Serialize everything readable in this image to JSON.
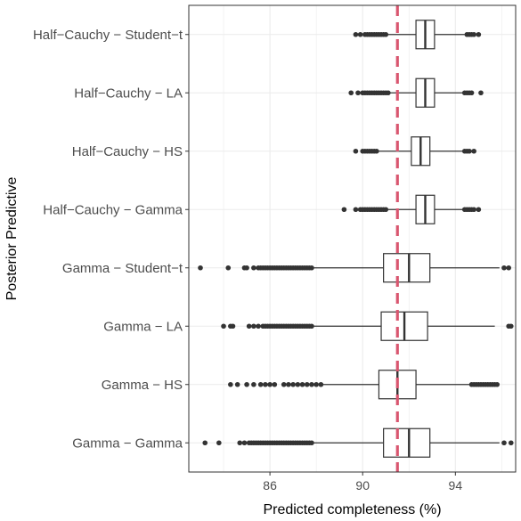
{
  "chart_data": {
    "type": "boxplot",
    "orientation": "horizontal",
    "xlabel": "Predicted completeness (%)",
    "ylabel": "Posterior Predictive",
    "xlim": [
      82.5,
      96.6
    ],
    "x_ticks": [
      86,
      90,
      94
    ],
    "x_minor_ticks": [
      84,
      88,
      92,
      96
    ],
    "grid": "on",
    "reference_line": {
      "x": 91.5,
      "style": "dashed",
      "color": "#d9566f"
    },
    "colors": {
      "box_fill": "#ffffff",
      "box_stroke": "#333333",
      "outlier": "#333333",
      "grid": "#ebebeb",
      "panel_border": "#333333",
      "reference": "#d9566f"
    },
    "categories": [
      "Half−Cauchy − Student−t",
      "Half−Cauchy − LA",
      "Half−Cauchy − HS",
      "Half−Cauchy − Gamma",
      "Gamma − Student−t",
      "Gamma − LA",
      "Gamma − HS",
      "Gamma − Gamma"
    ],
    "boxes": [
      {
        "category": "Half−Cauchy − Student−t",
        "whisker_low": 91.1,
        "q1": 92.3,
        "median": 92.7,
        "q3": 93.1,
        "whisker_high": 94.4,
        "outliers": [
          89.7,
          89.9,
          90.1,
          90.2,
          90.3,
          90.4,
          90.5,
          90.6,
          90.7,
          90.8,
          90.9,
          91.0,
          94.5,
          94.6,
          94.7,
          94.8,
          95.0
        ]
      },
      {
        "category": "Half−Cauchy − LA",
        "whisker_low": 91.2,
        "q1": 92.3,
        "median": 92.7,
        "q3": 93.1,
        "whisker_high": 94.3,
        "outliers": [
          89.5,
          89.8,
          90.0,
          90.1,
          90.2,
          90.3,
          90.4,
          90.5,
          90.6,
          90.7,
          90.8,
          90.9,
          91.0,
          91.1,
          94.4,
          94.5,
          94.6,
          94.7,
          95.1
        ]
      },
      {
        "category": "Half−Cauchy − HS",
        "whisker_low": 90.7,
        "q1": 92.1,
        "median": 92.5,
        "q3": 92.9,
        "whisker_high": 94.3,
        "outliers": [
          89.7,
          90.0,
          90.1,
          90.2,
          90.3,
          90.4,
          90.5,
          90.6,
          94.4,
          94.5,
          94.6,
          94.8
        ]
      },
      {
        "category": "Half−Cauchy − Gamma",
        "whisker_low": 91.1,
        "q1": 92.3,
        "median": 92.7,
        "q3": 93.1,
        "whisker_high": 94.3,
        "outliers": [
          89.2,
          89.7,
          89.9,
          90.0,
          90.1,
          90.2,
          90.3,
          90.4,
          90.5,
          90.6,
          90.7,
          90.8,
          90.9,
          91.0,
          94.4,
          94.5,
          94.6,
          94.7,
          94.8,
          95.0
        ]
      },
      {
        "category": "Gamma − Student−t",
        "whisker_low": 87.9,
        "q1": 90.9,
        "median": 92.0,
        "q3": 92.9,
        "whisker_high": 95.9,
        "outliers": [
          83.0,
          84.2,
          84.9,
          85.0,
          85.3,
          85.5,
          85.6,
          85.7,
          85.8,
          85.9,
          86.0,
          86.1,
          86.2,
          86.3,
          86.4,
          86.5,
          86.6,
          86.7,
          86.8,
          86.9,
          87.0,
          87.1,
          87.2,
          87.3,
          87.4,
          87.5,
          87.6,
          87.7,
          87.8,
          96.1,
          96.3
        ]
      },
      {
        "category": "Gamma − LA",
        "whisker_low": 87.9,
        "q1": 90.8,
        "median": 91.8,
        "q3": 92.8,
        "whisker_high": 95.7,
        "outliers": [
          84.0,
          84.3,
          84.4,
          85.1,
          85.3,
          85.5,
          85.7,
          85.8,
          85.9,
          86.0,
          86.1,
          86.2,
          86.3,
          86.4,
          86.5,
          86.6,
          86.7,
          86.8,
          86.9,
          87.0,
          87.1,
          87.2,
          87.3,
          87.4,
          87.5,
          87.6,
          87.7,
          87.8,
          96.3,
          96.4
        ]
      },
      {
        "category": "Gamma − HS",
        "whisker_low": 88.3,
        "q1": 90.7,
        "median": 91.5,
        "q3": 92.3,
        "whisker_high": 94.6,
        "outliers": [
          84.3,
          84.6,
          85.0,
          85.3,
          85.6,
          85.8,
          86.0,
          86.2,
          86.6,
          86.8,
          87.0,
          87.2,
          87.4,
          87.6,
          87.8,
          88.0,
          88.2,
          94.7,
          94.8,
          94.9,
          95.0,
          95.1,
          95.2,
          95.3,
          95.4,
          95.5,
          95.6,
          95.7,
          95.8
        ]
      },
      {
        "category": "Gamma − Gamma",
        "whisker_low": 87.9,
        "q1": 90.9,
        "median": 92.0,
        "q3": 92.9,
        "whisker_high": 95.9,
        "outliers": [
          83.2,
          83.8,
          84.7,
          84.9,
          85.1,
          85.2,
          85.3,
          85.4,
          85.5,
          85.6,
          85.7,
          85.8,
          85.9,
          86.0,
          86.1,
          86.2,
          86.3,
          86.4,
          86.5,
          86.6,
          86.7,
          86.8,
          86.9,
          87.0,
          87.1,
          87.2,
          87.3,
          87.4,
          87.5,
          87.6,
          87.7,
          87.8,
          96.1,
          96.4
        ]
      }
    ]
  }
}
